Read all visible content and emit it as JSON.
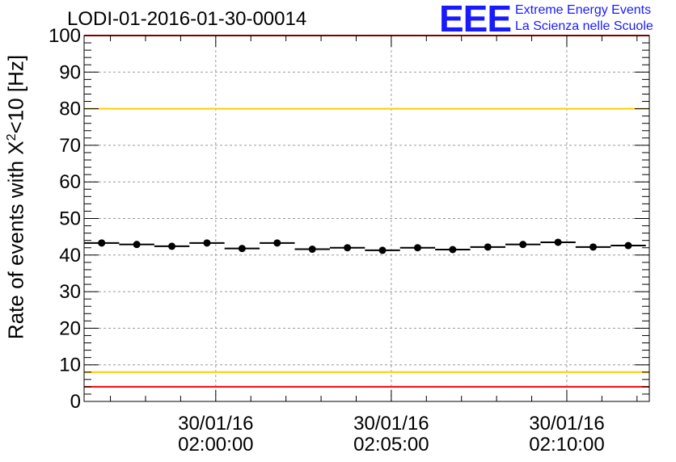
{
  "title": "LODI-01-2016-01-30-00014",
  "logo": {
    "mark": "EEE",
    "line1": "Extreme Energy Events",
    "line2": "La Scienza nelle Scuole",
    "color": "#1a1aff"
  },
  "chart_data": {
    "type": "scatter",
    "title": "LODI-01-2016-01-30-00014",
    "xlabel": "",
    "ylabel_prefix": "Rate of events with X",
    "ylabel_sup": "2",
    "ylabel_suffix": "<10 [Hz]",
    "ylim": [
      0,
      100
    ],
    "yticks": [
      "0",
      "10",
      "20",
      "30",
      "40",
      "50",
      "60",
      "70",
      "80",
      "90",
      "100"
    ],
    "x_unit": "minutes relative to 30/01/16 02:00:00",
    "xlim": [
      -3.75,
      12.35
    ],
    "xticks": [
      {
        "x": 0,
        "date": "30/01/16",
        "time": "02:00:00"
      },
      {
        "x": 5,
        "date": "30/01/16",
        "time": "02:05:00"
      },
      {
        "x": 10,
        "date": "30/01/16",
        "time": "02:10:00"
      }
    ],
    "bin_width": 1.0,
    "grid": true,
    "points": [
      {
        "x": -3.25,
        "y": 43.3
      },
      {
        "x": -2.25,
        "y": 42.9
      },
      {
        "x": -1.25,
        "y": 42.4
      },
      {
        "x": -0.25,
        "y": 43.3
      },
      {
        "x": 0.75,
        "y": 41.8
      },
      {
        "x": 1.75,
        "y": 43.3
      },
      {
        "x": 2.75,
        "y": 41.6
      },
      {
        "x": 3.75,
        "y": 42.0
      },
      {
        "x": 4.75,
        "y": 41.3
      },
      {
        "x": 5.75,
        "y": 42.0
      },
      {
        "x": 6.75,
        "y": 41.5
      },
      {
        "x": 7.75,
        "y": 42.2
      },
      {
        "x": 8.75,
        "y": 42.9
      },
      {
        "x": 9.75,
        "y": 43.5
      },
      {
        "x": 10.75,
        "y": 42.2
      },
      {
        "x": 11.75,
        "y": 42.6
      }
    ],
    "reference_lines": [
      {
        "y": 100,
        "color": "#ff0000"
      },
      {
        "y": 80,
        "color": "#ffcc00"
      },
      {
        "y": 8,
        "color": "#ffcc00"
      },
      {
        "y": 4,
        "color": "#ff0000"
      }
    ]
  }
}
